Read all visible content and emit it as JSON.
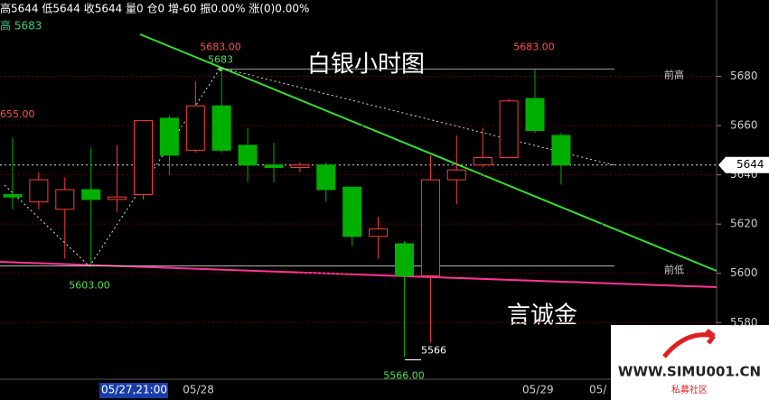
{
  "header": {
    "quote": "高5644 低5644 收5644 量0 仓0 增-60 振0.00% 涨(0)0.00%",
    "high_line": "高 5683"
  },
  "chart_data": {
    "type": "candlestick",
    "title": "白银小时图",
    "watermark": "言诚金",
    "categories": [
      null,
      null,
      null,
      null,
      null,
      null,
      null,
      "05/28",
      null,
      null,
      null,
      null,
      null,
      null,
      null,
      null,
      null,
      null,
      null,
      null,
      "05/29",
      null
    ],
    "x_label_cut": "05/",
    "cursor_time": "05/27,21:00",
    "left_label_cut": "655.00",
    "series": [
      {
        "name": "白银",
        "up_color": "#ff3c3c",
        "down_color": "#00b000",
        "open": [
          5632,
          5629,
          5626,
          5634,
          5630,
          5632,
          5663,
          5650,
          5668,
          5652,
          5644,
          5643,
          5644,
          5635,
          5615,
          5612,
          5599,
          5638,
          5644,
          5647,
          5671,
          5656
        ],
        "high": [
          5655,
          5641,
          5639,
          5651,
          5652,
          5662,
          5664,
          5678,
          5683,
          5659,
          5653,
          5645,
          5645,
          5635,
          5623,
          5613,
          5648,
          5656,
          5659,
          5671,
          5683,
          5657
        ],
        "low": [
          5626,
          5626,
          5606,
          5603,
          5625,
          5630,
          5640,
          5649,
          5649,
          5637,
          5637,
          5641,
          5629,
          5611,
          5606,
          5566,
          5572,
          5628,
          5643,
          5647,
          5657,
          5636
        ],
        "close": [
          5631,
          5638,
          5634,
          5630,
          5631,
          5662,
          5648,
          5668,
          5650,
          5644,
          5643,
          5644,
          5634,
          5615,
          5618,
          5599,
          5638,
          5642,
          5647,
          5670,
          5658,
          5644
        ]
      }
    ],
    "last_price": 5644,
    "levels": [
      {
        "name": "前高",
        "value": 5683
      },
      {
        "name": "前低",
        "value": 5603
      }
    ],
    "price_labels": [
      {
        "value": 5683,
        "label": "5683.00"
      },
      {
        "value": 5683,
        "label": "5683.00"
      },
      {
        "value": 5603,
        "label": "5603.00"
      },
      {
        "value": 5566,
        "label": "5566.00"
      },
      5566,
      5683
    ],
    "ylim": [
      5557,
      5711
    ],
    "yticks": [
      5580,
      5600,
      5620,
      5640,
      5660,
      5680
    ],
    "grid": true
  },
  "logo": {
    "url": "WWW.SIMU001.CN",
    "name": "私募社区"
  }
}
